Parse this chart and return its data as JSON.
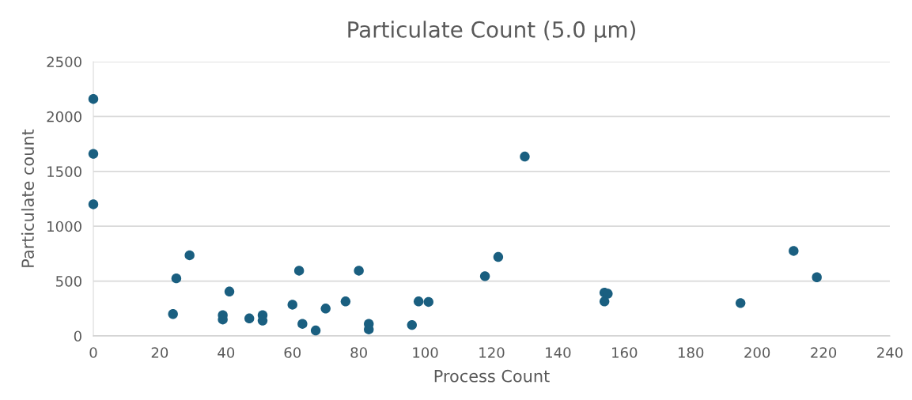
{
  "chart_data": {
    "type": "scatter",
    "title": "Particulate Count (5.0 µm)",
    "xlabel": "Process Count",
    "ylabel": "Particulate count",
    "x": [
      0,
      0,
      0,
      24,
      25,
      29,
      39,
      39,
      41,
      47,
      51,
      51,
      60,
      62,
      63,
      67,
      70,
      76,
      80,
      83,
      83,
      96,
      98,
      101,
      118,
      122,
      130,
      154,
      154,
      155,
      195,
      211,
      218
    ],
    "values": [
      2160,
      1660,
      1200,
      200,
      525,
      735,
      190,
      150,
      405,
      160,
      190,
      140,
      285,
      595,
      110,
      50,
      250,
      315,
      595,
      110,
      60,
      100,
      315,
      310,
      545,
      720,
      1635,
      315,
      395,
      385,
      300,
      775,
      535
    ],
    "color": "#1a5f80",
    "marker": "circle",
    "xlim": [
      0,
      240
    ],
    "xticks": [
      0,
      20,
      40,
      60,
      80,
      100,
      120,
      140,
      160,
      180,
      200,
      220,
      240
    ],
    "ylim": [
      0,
      2500
    ],
    "yticks": [
      0,
      500,
      1000,
      1500,
      2000,
      2500
    ],
    "grid": "y",
    "legend": false
  }
}
